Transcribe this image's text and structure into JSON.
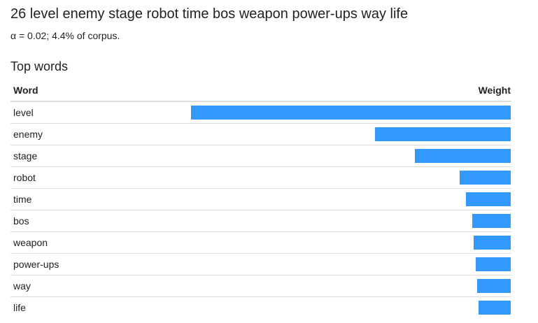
{
  "header": {
    "title": "26 level enemy stage robot time bos weapon power-ups way life",
    "subtitle": "α = 0.02; 4.4% of corpus."
  },
  "section": {
    "heading": "Top words"
  },
  "table": {
    "col_word": "Word",
    "col_weight": "Weight"
  },
  "colors": {
    "bar": "#3399ff"
  },
  "chart_data": {
    "type": "bar",
    "orientation": "horizontal",
    "categories": [
      "level",
      "enemy",
      "stage",
      "robot",
      "time",
      "bos",
      "weapon",
      "power-ups",
      "way",
      "life"
    ],
    "values": [
      1.0,
      0.425,
      0.3,
      0.16,
      0.14,
      0.12,
      0.115,
      0.11,
      0.105,
      0.1
    ],
    "value_unit": "fraction of largest weight",
    "xlim": [
      0,
      1
    ],
    "grid": false,
    "legend": "none"
  }
}
